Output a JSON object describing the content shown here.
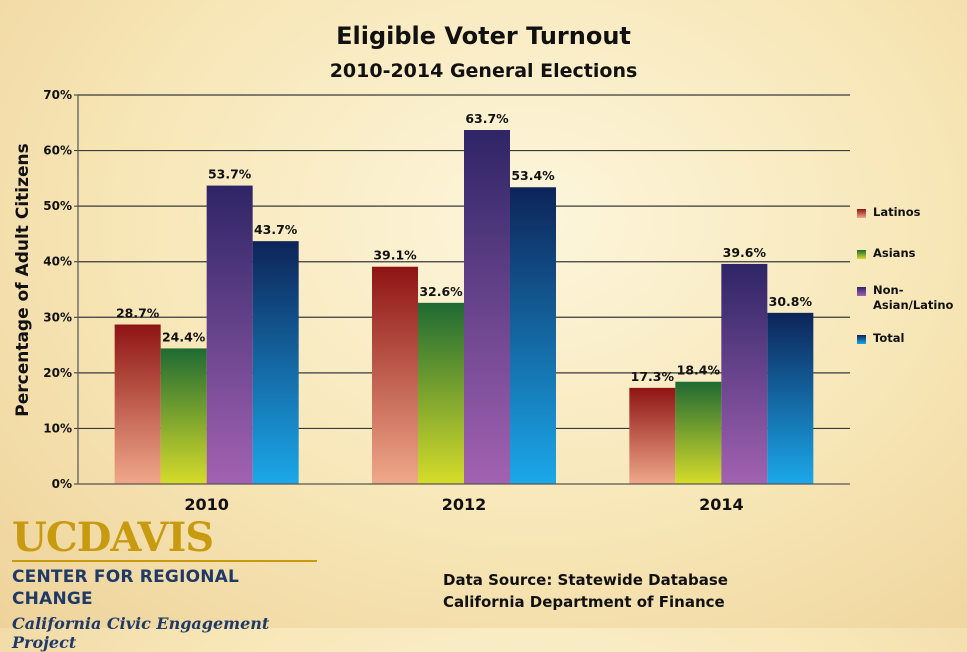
{
  "chart_data": {
    "type": "bar",
    "title": "Eligible Voter Turnout",
    "subtitle": "2010-2014 General Elections",
    "xlabel": "",
    "ylabel": "Percentage of Adult Citizens",
    "ylim": [
      0,
      70
    ],
    "yticks": [
      0,
      10,
      20,
      30,
      40,
      50,
      60,
      70
    ],
    "ytick_labels": [
      "0%",
      "10%",
      "20%",
      "30%",
      "40%",
      "50%",
      "60%",
      "70%"
    ],
    "grid": true,
    "legend_position": "right",
    "categories": [
      "2010",
      "2012",
      "2014"
    ],
    "series": [
      {
        "name": "Latinos",
        "values": [
          28.7,
          39.1,
          17.3
        ],
        "data_labels": [
          "28.7%",
          "39.1%",
          "17.3%"
        ],
        "color_top": "#8e1414",
        "color_bottom": "#f0a88a"
      },
      {
        "name": "Asians",
        "values": [
          24.4,
          32.6,
          18.4
        ],
        "data_labels": [
          "24.4%",
          "32.6%",
          "18.4%"
        ],
        "color_top": "#1f6a33",
        "color_bottom": "#d6dc2a"
      },
      {
        "name": "Non-\nAsian/Latino",
        "values": [
          53.7,
          63.7,
          39.6
        ],
        "data_labels": [
          "53.7%",
          "63.7%",
          "39.6%"
        ],
        "color_top": "#2e2566",
        "color_bottom": "#a262b2"
      },
      {
        "name": "Total",
        "values": [
          43.7,
          53.4,
          30.8
        ],
        "data_labels": [
          "43.7%",
          "53.4%",
          "30.8%"
        ],
        "color_top": "#0d2458",
        "color_bottom": "#1ba8ea"
      }
    ]
  },
  "logo": {
    "uc": "UC",
    "davis": "DAVIS",
    "center": "CENTER FOR REGIONAL CHANGE",
    "project": "California Civic Engagement Project"
  },
  "source": {
    "line1": "Data Source: Statewide Database",
    "line2": "California Department of Finance"
  },
  "colors": {
    "logo_gold": "#c89a10",
    "logo_navy": "#1f3a67"
  }
}
